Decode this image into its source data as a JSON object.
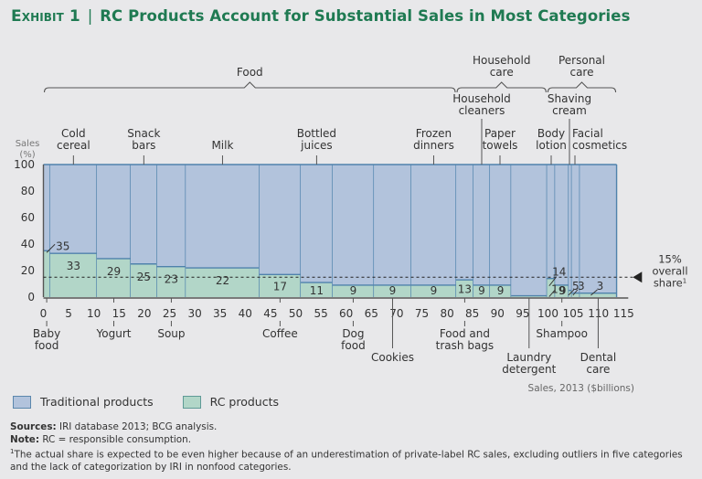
{
  "title": {
    "exhibit": "Exhibit 1",
    "separator": "|",
    "text": "RC Products Account for Substantial Sales in Most Categories"
  },
  "colors": {
    "traditional": "#b2c3dc",
    "rc": "#b2d6c8",
    "border": "#4f82ac",
    "title": "#1f7a52"
  },
  "legend": {
    "traditional_label": "Traditional products",
    "rc_label": "RC products"
  },
  "notes": {
    "sources_label": "Sources:",
    "sources_text": " IRI database 2013; BCG analysis.",
    "note_label": "Note:",
    "note_text": " RC = responsible consumption.",
    "footnote_marker": "1",
    "footnote_text": "The actual share is expected to be even higher because of an underestimation of private-label RC sales, excluding outliers in five categories and the lack of categorization by IRI in nonfood categories."
  },
  "chart_data": {
    "type": "bar",
    "subtype": "marimekko",
    "title": "RC Products Account for Substantial Sales in Most Categories",
    "xlabel": "Sales, 2013 ($billions)",
    "ylabel": "Sales (%)",
    "ylabel_lines": [
      "Sales",
      "(%)"
    ],
    "xlim": [
      0,
      115
    ],
    "ylim": [
      0,
      100
    ],
    "xticks": [
      0,
      5,
      10,
      15,
      20,
      25,
      30,
      35,
      40,
      45,
      50,
      55,
      60,
      65,
      70,
      75,
      80,
      85,
      90,
      95,
      100,
      105,
      110,
      115
    ],
    "yticks": [
      0,
      20,
      40,
      60,
      80,
      100
    ],
    "reference_line": {
      "value": 15,
      "label_lines": [
        "15%",
        "overall",
        "share"
      ],
      "footnote": "1"
    },
    "groups": [
      {
        "name": "Food",
        "label_lines": [
          "Food"
        ],
        "start": 0,
        "end": 81.8
      },
      {
        "name": "Household care",
        "label_lines": [
          "Household",
          "care"
        ],
        "start": 81.8,
        "end": 99.8
      },
      {
        "name": "Personal care",
        "label_lines": [
          "Personal",
          "care"
        ],
        "start": 99.8,
        "end": 113.6
      }
    ],
    "series": [
      {
        "name": "Traditional products"
      },
      {
        "name": "RC products"
      }
    ],
    "categories": [
      {
        "name": "Baby food",
        "label_lines": [
          "Baby",
          "food"
        ],
        "width": 1.3,
        "rc_share": 35,
        "label_pos": "bottom",
        "callout": true
      },
      {
        "name": "Cold cereal",
        "label_lines": [
          "Cold",
          "cereal"
        ],
        "width": 9.3,
        "rc_share": 33,
        "label_pos": "top"
      },
      {
        "name": "Yogurt",
        "label_lines": [
          "Yogurt"
        ],
        "width": 6.7,
        "rc_share": 29,
        "label_pos": "bottom"
      },
      {
        "name": "Snack bars",
        "label_lines": [
          "Snack",
          "bars"
        ],
        "width": 5.2,
        "rc_share": 25,
        "label_pos": "top"
      },
      {
        "name": "Soup",
        "label_lines": [
          "Soup"
        ],
        "width": 5.7,
        "rc_share": 23,
        "label_pos": "bottom"
      },
      {
        "name": "Milk",
        "label_lines": [
          "Milk"
        ],
        "width": 14.6,
        "rc_share": 22,
        "label_pos": "top"
      },
      {
        "name": "Coffee",
        "label_lines": [
          "Coffee"
        ],
        "width": 8.2,
        "rc_share": 17,
        "label_pos": "bottom"
      },
      {
        "name": "Bottled juices",
        "label_lines": [
          "Bottled",
          "juices"
        ],
        "width": 6.3,
        "rc_share": 11,
        "label_pos": "top"
      },
      {
        "name": "Dog food",
        "label_lines": [
          "Dog",
          "food"
        ],
        "width": 8.2,
        "rc_share": 9,
        "label_pos": "bottom"
      },
      {
        "name": "Cookies",
        "label_lines": [
          "Cookies"
        ],
        "width": 7.4,
        "rc_share": 9,
        "label_pos": "bottom-low"
      },
      {
        "name": "Frozen dinners",
        "label_lines": [
          "Frozen",
          "dinners"
        ],
        "width": 8.9,
        "rc_share": 9,
        "label_pos": "top"
      },
      {
        "name": "Food and trash bags",
        "label_lines": [
          "Food and",
          "trash bags"
        ],
        "width": 3.4,
        "rc_share": 13,
        "label_pos": "bottom"
      },
      {
        "name": "Household cleaners",
        "label_lines": [
          "Household",
          "cleaners"
        ],
        "width": 3.3,
        "rc_share": 9,
        "label_pos": "top-high"
      },
      {
        "name": "Paper towels",
        "label_lines": [
          "Paper",
          "towels"
        ],
        "width": 4.2,
        "rc_share": 9,
        "label_pos": "top"
      },
      {
        "name": "Laundry detergent",
        "label_lines": [
          "Laundry",
          "detergent"
        ],
        "width": 7.1,
        "rc_share": 1,
        "label_pos": "bottom-low",
        "callout": true
      },
      {
        "name": "Body lotion",
        "label_lines": [
          "Body",
          "lotion"
        ],
        "width": 1.6,
        "rc_share": 14,
        "label_pos": "top",
        "callout": true
      },
      {
        "name": "Shampoo",
        "label_lines": [
          "Shampoo"
        ],
        "width": 2.7,
        "rc_share": 9,
        "label_pos": "bottom"
      },
      {
        "name": "Shaving cream",
        "label_lines": [
          "Shaving",
          "cream"
        ],
        "width": 0.6,
        "rc_share": 5,
        "label_pos": "top-high",
        "callout": true
      },
      {
        "name": "Facial cosmetics",
        "label_lines": [
          "Facial",
          "cosmetics"
        ],
        "width": 1.6,
        "rc_share": 3,
        "label_pos": "top",
        "callout": true
      },
      {
        "name": "Dental care",
        "label_lines": [
          "Dental",
          "care"
        ],
        "width": 7.3,
        "rc_share": 3,
        "label_pos": "bottom-low",
        "callout": true
      }
    ]
  }
}
